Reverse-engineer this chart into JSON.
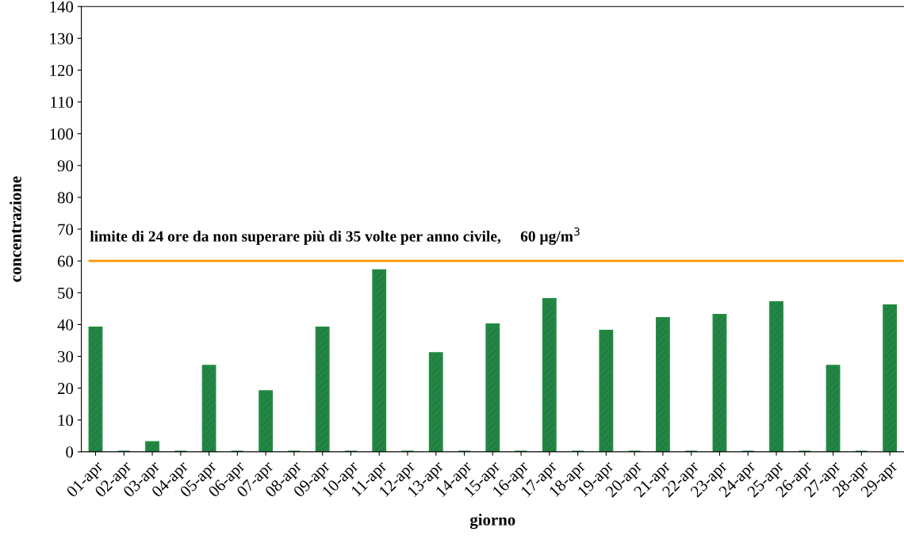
{
  "chart_data": {
    "type": "bar",
    "categories": [
      "01-apr",
      "02-apr",
      "03-apr",
      "04-apr",
      "05-apr",
      "06-apr",
      "07-apr",
      "08-apr",
      "09-apr",
      "10-apr",
      "11-apr",
      "12-apr",
      "13-apr",
      "14-apr",
      "15-apr",
      "16-apr",
      "17-apr",
      "18-apr",
      "19-apr",
      "20-apr",
      "21-apr",
      "22-apr",
      "23-apr",
      "24-apr",
      "25-apr",
      "26-apr",
      "27-apr",
      "28-apr",
      "29-apr"
    ],
    "values": [
      39,
      0,
      3,
      0,
      27,
      0,
      19,
      0,
      39,
      0,
      57,
      0,
      31,
      0,
      40,
      0,
      48,
      0,
      38,
      0,
      42,
      0,
      43,
      0,
      47,
      0,
      27,
      0,
      46
    ],
    "color": "#1f8a3f",
    "xlabel": "giorno",
    "ylabel": "concentrazione",
    "ylim": [
      0,
      140
    ],
    "yticks": [
      0,
      10,
      20,
      30,
      40,
      50,
      60,
      70,
      80,
      90,
      100,
      110,
      120,
      130,
      140
    ],
    "ref_lines": [
      {
        "axis": "y",
        "value": 60,
        "label": "limite di 24 ore da non superare più di 35 volte per anno civile,     60 µg/m$^{3}$",
        "color": "#ff9900"
      }
    ],
    "grid": false,
    "legend": false
  }
}
